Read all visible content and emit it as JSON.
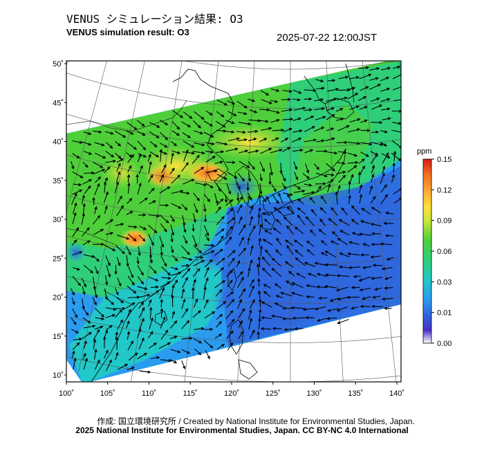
{
  "title_jp": "VENUS シミュレーション結果: O3",
  "title_en": "VENUS simulation result: O3",
  "timestamp": "2025-07-22 12:00JST",
  "map": {
    "lat_labels": [
      "50˚",
      "45˚",
      "40˚",
      "35˚",
      "30˚",
      "25˚",
      "20˚",
      "15˚",
      "10˚"
    ],
    "lon_labels": [
      "100˚",
      "105˚",
      "110˚",
      "115˚",
      "120˚",
      "125˚",
      "130˚",
      "135˚",
      "140˚"
    ],
    "lat_values": [
      50,
      45,
      40,
      35,
      30,
      25,
      20,
      15,
      10
    ],
    "lon_values": [
      100,
      105,
      110,
      115,
      120,
      125,
      130,
      135,
      140
    ]
  },
  "colorbar": {
    "unit": "ppm",
    "ticks": [
      "0.15",
      "0.12",
      "0.09",
      "0.06",
      "0.03",
      "0.01",
      "0.00"
    ],
    "colors": [
      "#d7191c",
      "#f46d1e",
      "#fdae35",
      "#ffe13a",
      "#c4e43a",
      "#4ecf3a",
      "#2fcf7a",
      "#22c7c7",
      "#2a9cf0",
      "#2f5fdc",
      "#4b2fc4",
      "#ffffff"
    ]
  },
  "footer": {
    "line1": "作成: 国立環境研究所 / Created by National Institute for Environmental Studies, Japan.",
    "line2": "2025 National Institute for Environmental Studies, Japan. CC BY-NC 4.0 International"
  }
}
